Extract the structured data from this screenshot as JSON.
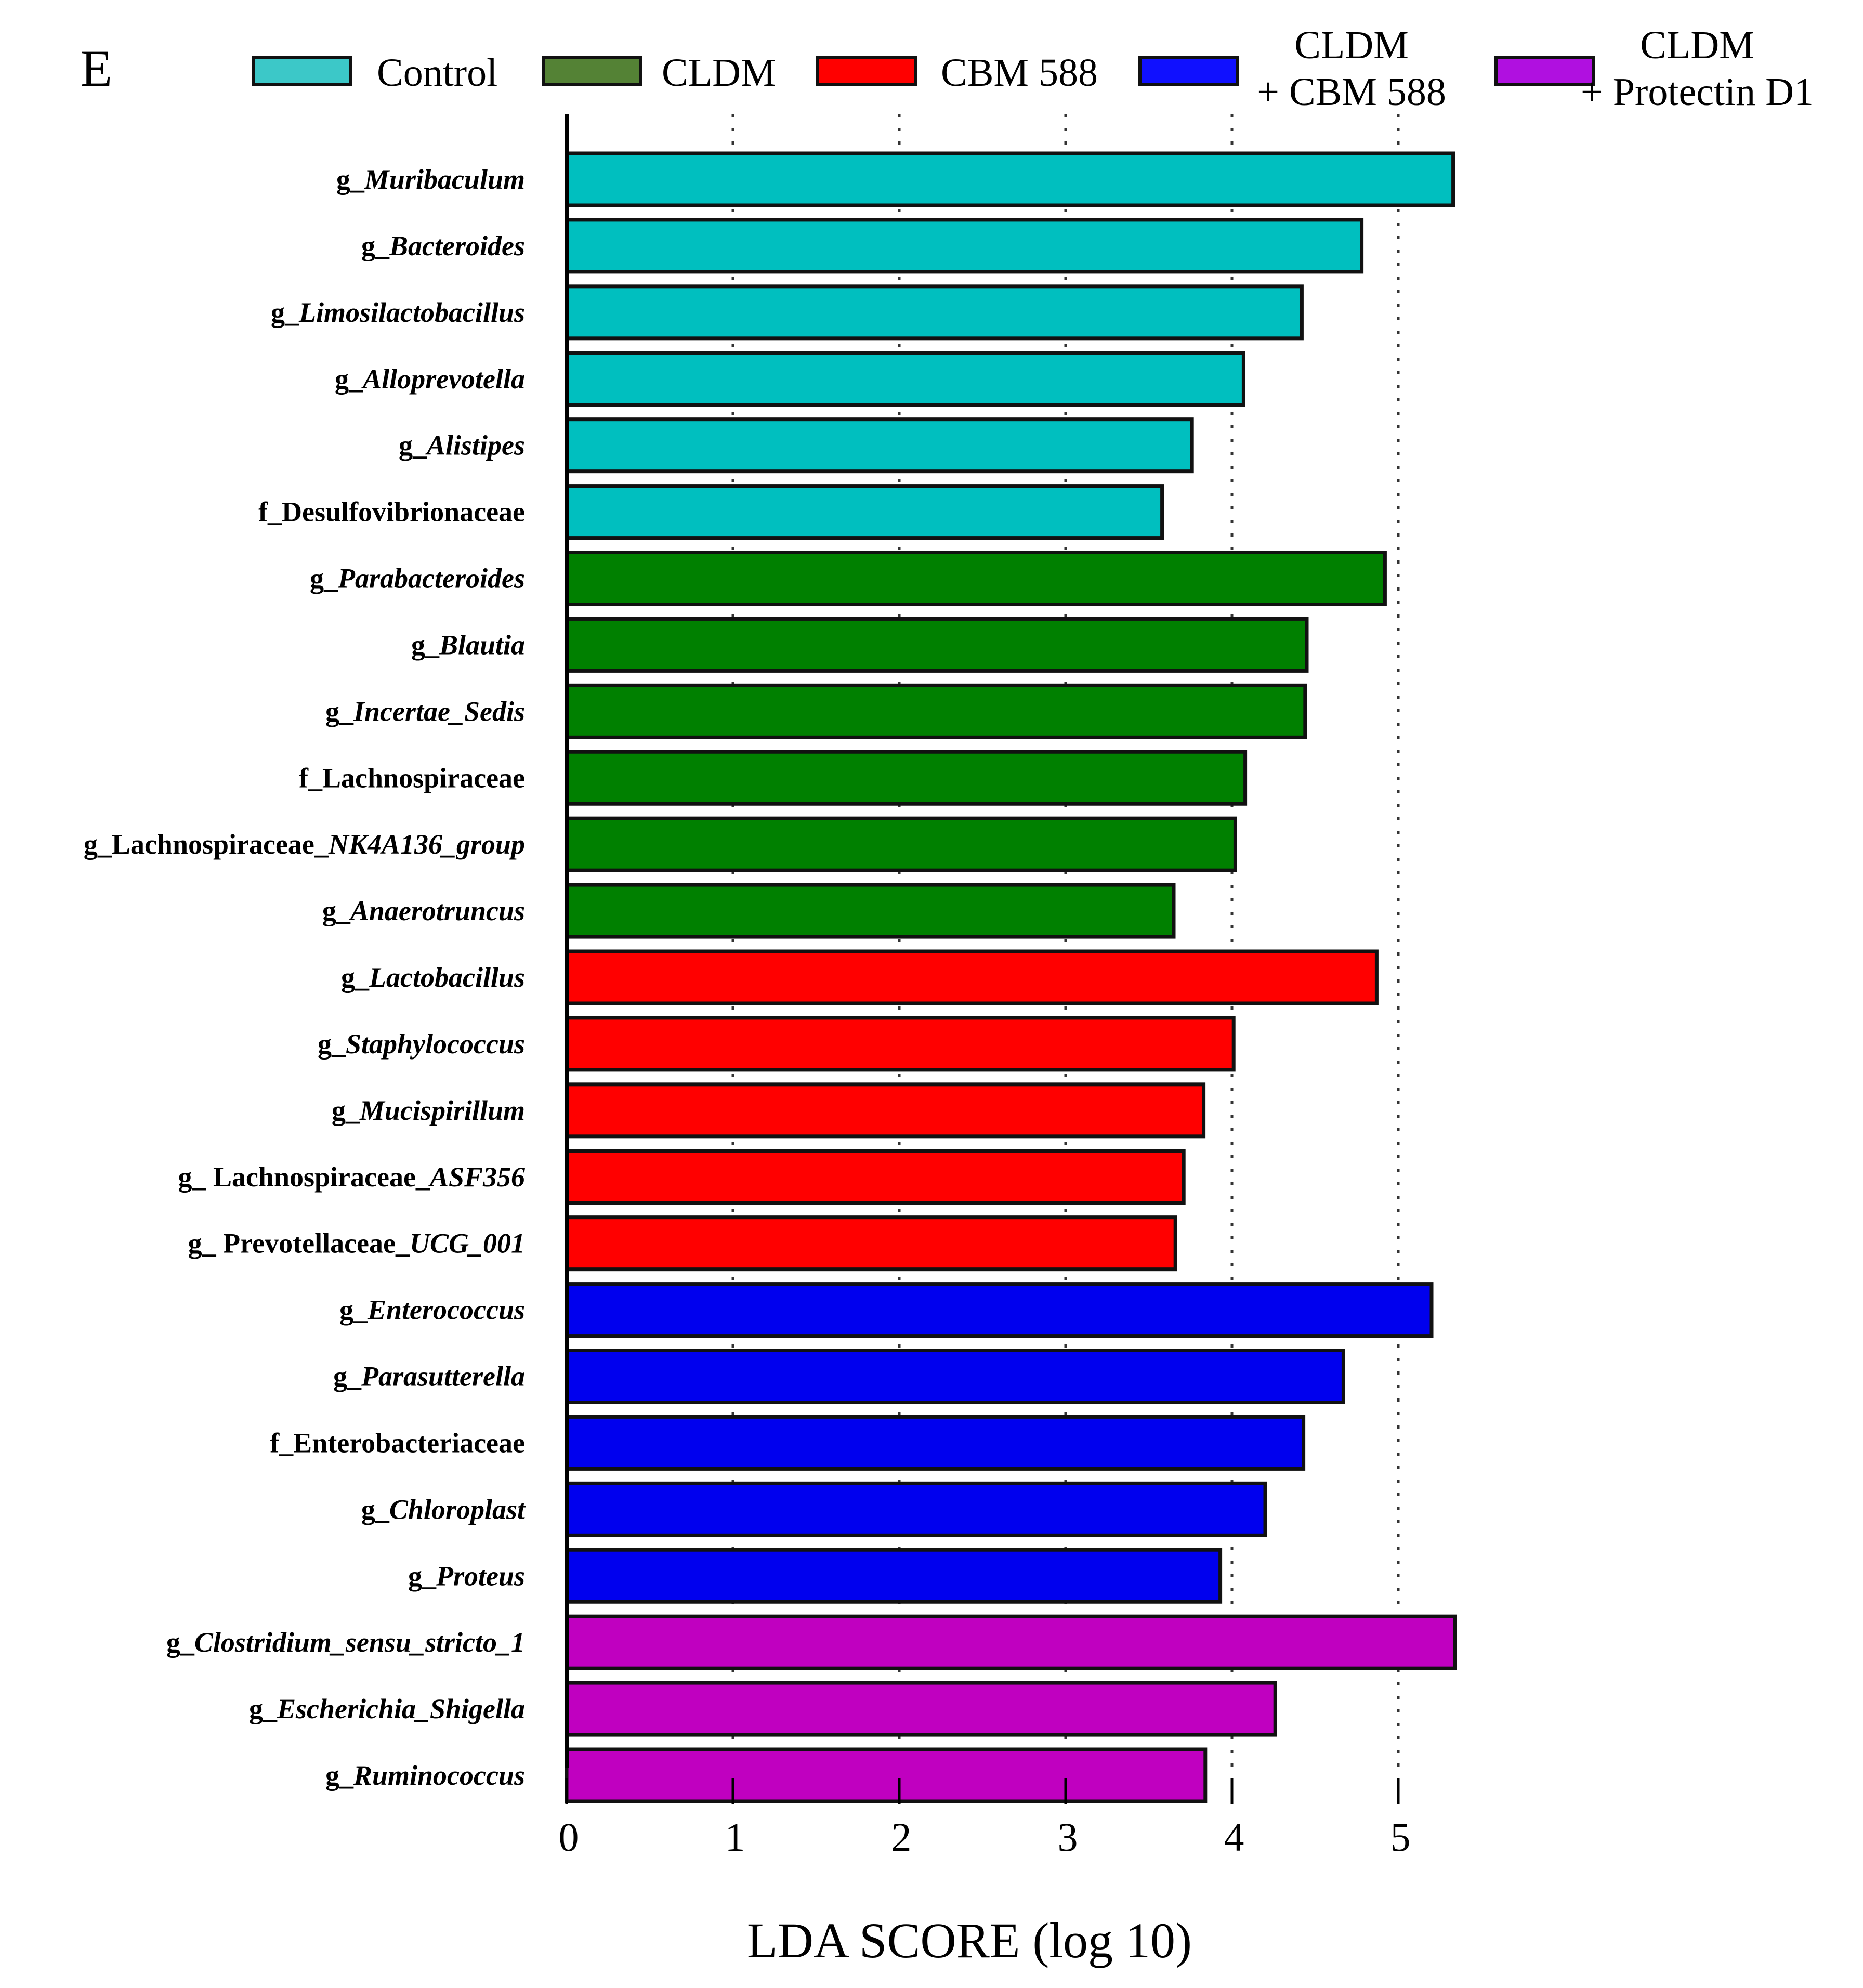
{
  "panel_label": "E",
  "colors": {
    "Control": "#00bfbf",
    "CLDM": "#008000",
    "CBM 588": "#ff0000",
    "CLDM + CBM 588": "#0000ee",
    "CLDM + Protectin D1": "#c000c0",
    "legend_CLDM": "#548235",
    "legend_CBM": "#ff0000",
    "legend_Control": "#3cc8c8",
    "legend_CLDM_CBM": "#1010ff",
    "legend_CLDM_PD1": "#b010e0"
  },
  "chart_data": {
    "type": "bar",
    "orientation": "horizontal",
    "title": "",
    "xlabel": "LDA SCORE (log 10)",
    "ylabel": "",
    "xlim": [
      0,
      5.5
    ],
    "xticks": [
      "0",
      "1",
      "2",
      "3",
      "4",
      "5"
    ],
    "grid": "dotted vertical lines at 1, 2, 3, 4, 5",
    "legend_position": "top",
    "legend": [
      {
        "group": "Control",
        "lines": [
          "Control"
        ]
      },
      {
        "group": "CLDM",
        "lines": [
          "CLDM"
        ]
      },
      {
        "group": "CBM 588",
        "lines": [
          "CBM 588"
        ]
      },
      {
        "group": "CLDM + CBM 588",
        "lines": [
          "CLDM",
          "+ CBM 588"
        ]
      },
      {
        "group": "CLDM + Protectin D1",
        "lines": [
          "CLDM",
          "+ Protectin D1"
        ]
      }
    ],
    "bars": [
      {
        "label": [
          {
            "t": "g_"
          },
          {
            "t": "Muribaculum",
            "i": true
          }
        ],
        "value": 5.33,
        "group": "Control"
      },
      {
        "label": [
          {
            "t": "g_"
          },
          {
            "t": "Bacteroides",
            "i": true
          }
        ],
        "value": 4.78,
        "group": "Control"
      },
      {
        "label": [
          {
            "t": "g_"
          },
          {
            "t": "Limosilactobacillus",
            "i": true
          }
        ],
        "value": 4.42,
        "group": "Control"
      },
      {
        "label": [
          {
            "t": "g_"
          },
          {
            "t": "Alloprevotella",
            "i": true
          }
        ],
        "value": 4.07,
        "group": "Control"
      },
      {
        "label": [
          {
            "t": "g_"
          },
          {
            "t": "Alistipes",
            "i": true
          }
        ],
        "value": 3.76,
        "group": "Control"
      },
      {
        "label": [
          {
            "t": "f_Desulfovibrionaceae"
          }
        ],
        "value": 3.58,
        "group": "Control"
      },
      {
        "label": [
          {
            "t": "g_"
          },
          {
            "t": "Parabacteroides",
            "i": true
          }
        ],
        "value": 4.92,
        "group": "CLDM"
      },
      {
        "label": [
          {
            "t": "g_"
          },
          {
            "t": "Blautia",
            "i": true
          }
        ],
        "value": 4.45,
        "group": "CLDM"
      },
      {
        "label": [
          {
            "t": "g_"
          },
          {
            "t": "Incertae_Sedis",
            "i": true
          }
        ],
        "value": 4.44,
        "group": "CLDM"
      },
      {
        "label": [
          {
            "t": "f_Lachnospiraceae"
          }
        ],
        "value": 4.08,
        "group": "CLDM"
      },
      {
        "label": [
          {
            "t": "g_Lachnospiraceae_"
          },
          {
            "t": "NK4A136_group",
            "i": true
          }
        ],
        "value": 4.02,
        "group": "CLDM"
      },
      {
        "label": [
          {
            "t": "g_"
          },
          {
            "t": "Anaerotruncus",
            "i": true
          }
        ],
        "value": 3.65,
        "group": "CLDM"
      },
      {
        "label": [
          {
            "t": "g_"
          },
          {
            "t": "Lactobacillus",
            "i": true
          }
        ],
        "value": 4.87,
        "group": "CBM 588"
      },
      {
        "label": [
          {
            "t": "g_"
          },
          {
            "t": "Staphylococcus",
            "i": true
          }
        ],
        "value": 4.01,
        "group": "CBM 588"
      },
      {
        "label": [
          {
            "t": "g_"
          },
          {
            "t": "Mucispirillum",
            "i": true
          }
        ],
        "value": 3.83,
        "group": "CBM 588"
      },
      {
        "label": [
          {
            "t": "g_ Lachnospiraceae_"
          },
          {
            "t": "ASF356",
            "i": true
          }
        ],
        "value": 3.71,
        "group": "CBM 588"
      },
      {
        "label": [
          {
            "t": "g_ Prevotellaceae_"
          },
          {
            "t": "UCG_001",
            "i": true
          }
        ],
        "value": 3.66,
        "group": "CBM 588"
      },
      {
        "label": [
          {
            "t": "g_"
          },
          {
            "t": "Enterococcus",
            "i": true
          }
        ],
        "value": 5.2,
        "group": "CLDM + CBM 588"
      },
      {
        "label": [
          {
            "t": "g_"
          },
          {
            "t": "Parasutterella",
            "i": true
          }
        ],
        "value": 4.67,
        "group": "CLDM + CBM 588"
      },
      {
        "label": [
          {
            "t": "f_Enterobacteriaceae"
          }
        ],
        "value": 4.43,
        "group": "CLDM + CBM 588"
      },
      {
        "label": [
          {
            "t": "g_"
          },
          {
            "t": "Chloroplast",
            "i": true
          }
        ],
        "value": 4.2,
        "group": "CLDM + CBM 588"
      },
      {
        "label": [
          {
            "t": "g_"
          },
          {
            "t": "Proteus",
            "i": true
          }
        ],
        "value": 3.93,
        "group": "CLDM + CBM 588"
      },
      {
        "label": [
          {
            "t": "g_"
          },
          {
            "t": "Clostridium_sensu_stricto_1",
            "i": true
          }
        ],
        "value": 5.34,
        "group": "CLDM + Protectin D1"
      },
      {
        "label": [
          {
            "t": "g_"
          },
          {
            "t": "Escherichia_Shigella",
            "i": true
          }
        ],
        "value": 4.26,
        "group": "CLDM + Protectin D1"
      },
      {
        "label": [
          {
            "t": "g_"
          },
          {
            "t": "Ruminococcus",
            "i": true
          }
        ],
        "value": 3.84,
        "group": "CLDM + Protectin D1"
      }
    ]
  }
}
